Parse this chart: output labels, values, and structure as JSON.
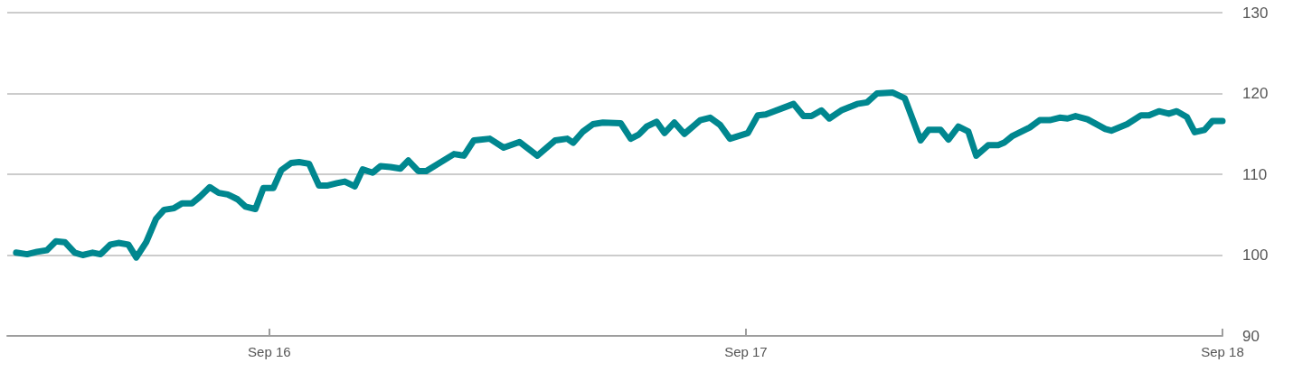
{
  "chart_data": {
    "type": "line",
    "x": [
      "--09-15T11:15",
      "--09-15T11:48",
      "--09-15T12:18",
      "--09-15T12:48",
      "--09-15T13:15",
      "--09-15T13:42",
      "--09-15T14:12",
      "--09-15T14:36",
      "--09-15T15:06",
      "--09-15T15:30",
      "--09-15T16:00",
      "--09-15T16:24",
      "--09-15T16:54",
      "--09-15T17:18",
      "--09-15T17:48",
      "--09-15T18:18",
      "--09-15T18:42",
      "--09-15T19:12",
      "--09-15T19:36",
      "--09-15T20:06",
      "--09-15T20:30",
      "--09-15T21:00",
      "--09-15T21:27",
      "--09-15T21:54",
      "--09-15T22:24",
      "--09-15T22:48",
      "--09-15T23:18",
      "--09-15T23:42",
      "--09-16T00:12",
      "--09-16T00:36",
      "--09-16T01:06",
      "--09-16T01:30",
      "--09-16T02:00",
      "--09-16T02:30",
      "--09-16T02:54",
      "--09-16T03:24",
      "--09-16T03:48",
      "--09-16T04:18",
      "--09-16T04:42",
      "--09-16T05:12",
      "--09-16T05:36",
      "--09-16T06:06",
      "--09-16T06:36",
      "--09-16T07:00",
      "--09-16T07:30",
      "--09-16T07:54",
      "--09-16T09:18",
      "--09-16T09:48",
      "--09-16T10:18",
      "--09-16T11:06",
      "--09-16T11:48",
      "--09-16T12:36",
      "--09-16T13:30",
      "--09-16T14:24",
      "--09-16T15:00",
      "--09-16T15:18",
      "--09-16T15:48",
      "--09-16T16:18",
      "--09-16T16:48",
      "--09-16T17:42",
      "--09-16T18:12",
      "--09-16T18:36",
      "--09-16T19:00",
      "--09-16T19:30",
      "--09-16T19:54",
      "--09-16T20:24",
      "--09-16T20:54",
      "--09-16T21:42",
      "--09-16T22:12",
      "--09-16T22:42",
      "--09-16T23:12",
      "--09-17T00:06",
      "--09-17T00:36",
      "--09-17T01:00",
      "--09-17T02:24",
      "--09-17T02:54",
      "--09-17T03:18",
      "--09-17T03:48",
      "--09-17T04:12",
      "--09-17T04:48",
      "--09-17T05:36",
      "--09-17T06:06",
      "--09-17T06:36",
      "--09-17T07:24",
      "--09-17T08:00",
      "--09-17T08:48",
      "--09-17T09:12",
      "--09-17T09:48",
      "--09-17T10:12",
      "--09-17T10:42",
      "--09-17T11:12",
      "--09-17T11:36",
      "--09-17T12:12",
      "--09-17T12:42",
      "--09-17T13:00",
      "--09-17T13:24",
      "--09-17T14:18",
      "--09-17T14:48",
      "--09-17T15:18",
      "--09-17T15:48",
      "--09-17T16:12",
      "--09-17T16:36",
      "--09-17T17:12",
      "--09-17T18:06",
      "--09-17T18:24",
      "--09-17T19:12",
      "--09-17T19:54",
      "--09-17T20:18",
      "--09-17T20:48",
      "--09-17T21:18",
      "--09-17T21:42",
      "--09-17T22:12",
      "--09-17T22:36",
      "--09-17T23:06",
      "--09-17T23:30",
      "--09-18T00:00"
    ],
    "series": [
      {
        "color": "#00878f",
        "values": [
          100.3,
          100.1,
          100.4,
          100.6,
          101.7,
          101.6,
          100.3,
          100.0,
          100.3,
          100.1,
          101.3,
          101.5,
          101.3,
          99.7,
          101.6,
          104.5,
          105.6,
          105.8,
          106.4,
          106.4,
          107.2,
          108.4,
          107.7,
          107.5,
          106.9,
          106.0,
          105.7,
          108.3,
          108.3,
          110.5,
          111.4,
          111.5,
          111.3,
          108.6,
          108.6,
          108.9,
          109.1,
          108.5,
          110.6,
          110.2,
          111.0,
          110.9,
          110.7,
          111.7,
          110.4,
          110.4,
          112.5,
          112.3,
          114.2,
          114.4,
          113.3,
          114.0,
          112.3,
          114.2,
          114.4,
          113.9,
          115.3,
          116.2,
          116.4,
          116.3,
          114.4,
          114.9,
          115.9,
          116.5,
          115.1,
          116.4,
          115.0,
          116.7,
          117.0,
          116.1,
          114.4,
          115.1,
          117.3,
          117.4,
          118.7,
          117.2,
          117.2,
          117.9,
          116.9,
          117.9,
          118.7,
          118.9,
          120.0,
          120.1,
          119.4,
          114.2,
          115.5,
          115.5,
          114.3,
          115.9,
          115.3,
          112.3,
          113.6,
          113.6,
          113.9,
          114.7,
          115.8,
          116.7,
          116.7,
          117.0,
          116.9,
          117.2,
          116.8,
          115.6,
          115.4,
          116.2,
          117.3,
          117.3,
          117.8,
          117.5,
          117.8,
          117.1,
          115.2,
          115.5,
          116.6,
          116.6
        ]
      }
    ],
    "xlim": [
      "--09-15T10:48",
      "--09-18T00:00"
    ],
    "xticks": [
      {
        "value": "--09-16",
        "label": "Sep 16"
      },
      {
        "value": "--09-17",
        "label": "Sep 17"
      },
      {
        "value": "--09-18",
        "label": "Sep 18"
      }
    ],
    "ylim": [
      90,
      130
    ],
    "yticks": [
      90,
      100,
      110,
      120,
      130
    ],
    "grid": "y",
    "marker": "none",
    "line_style": "solid"
  }
}
